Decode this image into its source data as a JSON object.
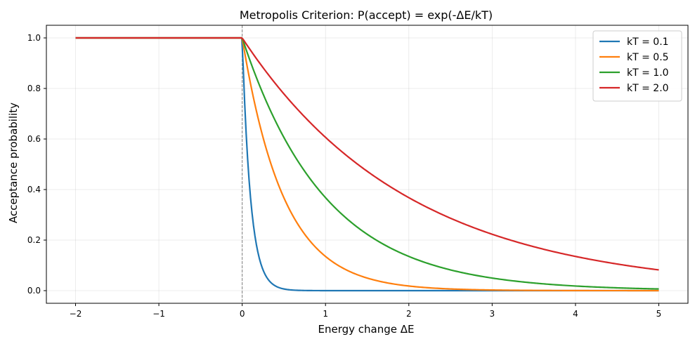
{
  "chart_data": {
    "type": "line",
    "title": "Metropolis Criterion: P(accept) = exp(-ΔE/kT)",
    "xlabel": "Energy change ΔE",
    "ylabel": "Acceptance probability",
    "xlim": [
      -2.35,
      5.35
    ],
    "ylim": [
      -0.05,
      1.05
    ],
    "x_ticks": [
      -2,
      -1,
      0,
      1,
      2,
      3,
      4,
      5
    ],
    "x_tick_labels": [
      "−2",
      "−1",
      "0",
      "1",
      "2",
      "3",
      "4",
      "5"
    ],
    "y_ticks": [
      0.0,
      0.2,
      0.4,
      0.6,
      0.8,
      1.0
    ],
    "y_tick_labels": [
      "0.0",
      "0.2",
      "0.4",
      "0.6",
      "0.8",
      "1.0"
    ],
    "grid": true,
    "legend_position": "top-right",
    "reference_line": {
      "x": 0,
      "style": "dashed",
      "color": "#808080"
    },
    "x_range": [
      -2,
      5
    ],
    "series": [
      {
        "name": "kT = 0.1",
        "kT": 0.1,
        "color": "#1f77b4"
      },
      {
        "name": "kT = 0.5",
        "kT": 0.5,
        "color": "#ff7f0e"
      },
      {
        "name": "kT = 1.0",
        "kT": 1.0,
        "color": "#2ca02c"
      },
      {
        "name": "kT = 2.0",
        "kT": 2.0,
        "color": "#d62728"
      }
    ]
  }
}
